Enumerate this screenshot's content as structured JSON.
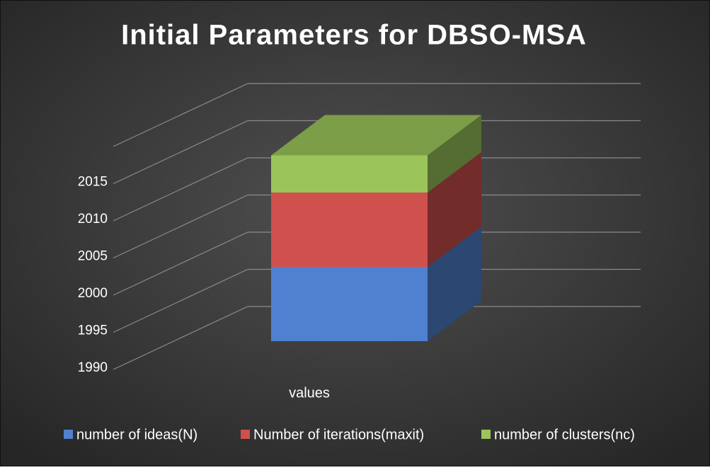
{
  "chart_data": {
    "type": "bar3d_stacked",
    "title": "Initial Parameters for DBSO-MSA",
    "categories": [
      "values"
    ],
    "series": [
      {
        "name": "number of ideas(N)",
        "color": "#4f81d0",
        "values": [
          2000
        ]
      },
      {
        "name": "Number of iterations(maxit)",
        "color": "#d0504d",
        "values": [
          10
        ]
      },
      {
        "name": "number of clusters(nc)",
        "color": "#9bc55a",
        "values": [
          5
        ]
      }
    ],
    "ylim": [
      1990,
      2020
    ],
    "yticks": [
      1990,
      1995,
      2000,
      2005,
      2010,
      2015
    ],
    "grid": true,
    "legend": "bottom"
  }
}
